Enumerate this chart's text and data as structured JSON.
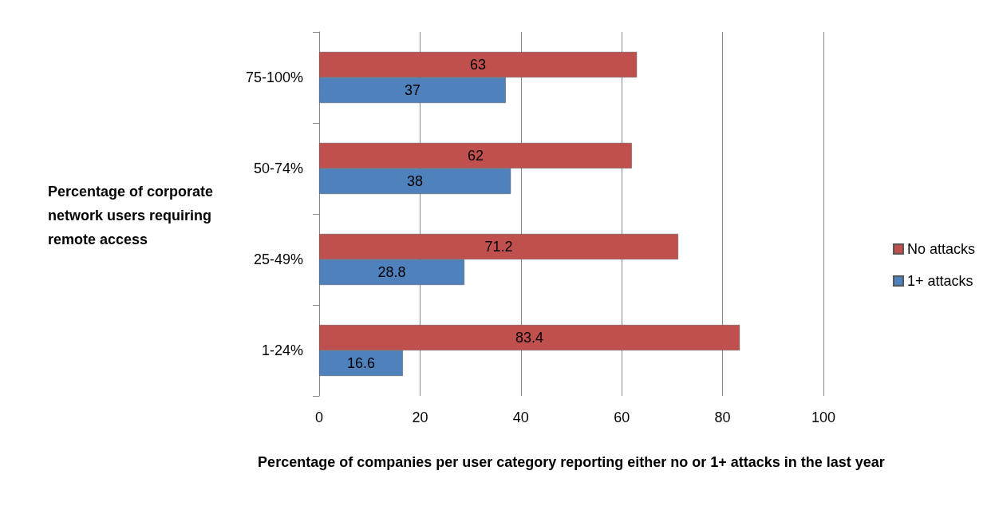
{
  "chart_data": {
    "type": "bar",
    "orientation": "horizontal",
    "categories": [
      "75-100%",
      "50-74%",
      "25-49%",
      "1-24%"
    ],
    "series": [
      {
        "name": "No attacks",
        "color": "#c0504d",
        "values": [
          63,
          62,
          71.2,
          83.4
        ]
      },
      {
        "name": "1+ attacks",
        "color": "#4f81bd",
        "values": [
          37,
          38,
          28.8,
          16.6
        ]
      }
    ],
    "xlim": [
      0,
      100
    ],
    "xticks": [
      0,
      20,
      40,
      60,
      80,
      100
    ],
    "grid": "x",
    "legend": "right",
    "data_labels": true,
    "xlabel": "Percentage of companies per user category reporting either no or 1+ attacks in the last year",
    "ylabel": "Percentage of corporate network users requiring remote access"
  }
}
